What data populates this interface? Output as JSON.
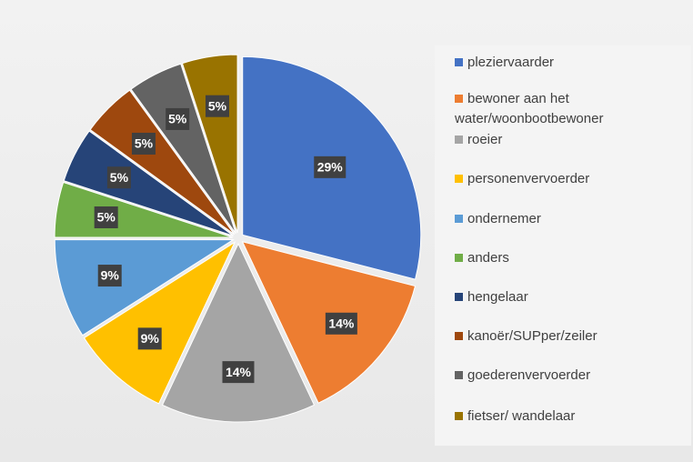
{
  "chart_data": {
    "type": "pie",
    "categories": [
      "pleziervaarder",
      "bewoner aan het water/woonbootbewoner",
      "roeier",
      "personenvervoerder",
      "ondernemer",
      "anders",
      "hengelaar",
      "kanoër/SUPper/zeiler",
      "goederenvervoerder",
      "fietser/ wandelaar"
    ],
    "values": [
      29,
      14,
      14,
      9,
      9,
      5,
      5,
      5,
      5,
      5
    ],
    "value_labels": [
      "29%",
      "14%",
      "14%",
      "9%",
      "9%",
      "5%",
      "5%",
      "5%",
      "5%",
      "5%"
    ],
    "colors": [
      "#4472c4",
      "#ed7d31",
      "#a5a5a5",
      "#ffc000",
      "#5b9bd5",
      "#70ad47",
      "#264478",
      "#9e480e",
      "#636363",
      "#997300"
    ],
    "legend": "right"
  }
}
